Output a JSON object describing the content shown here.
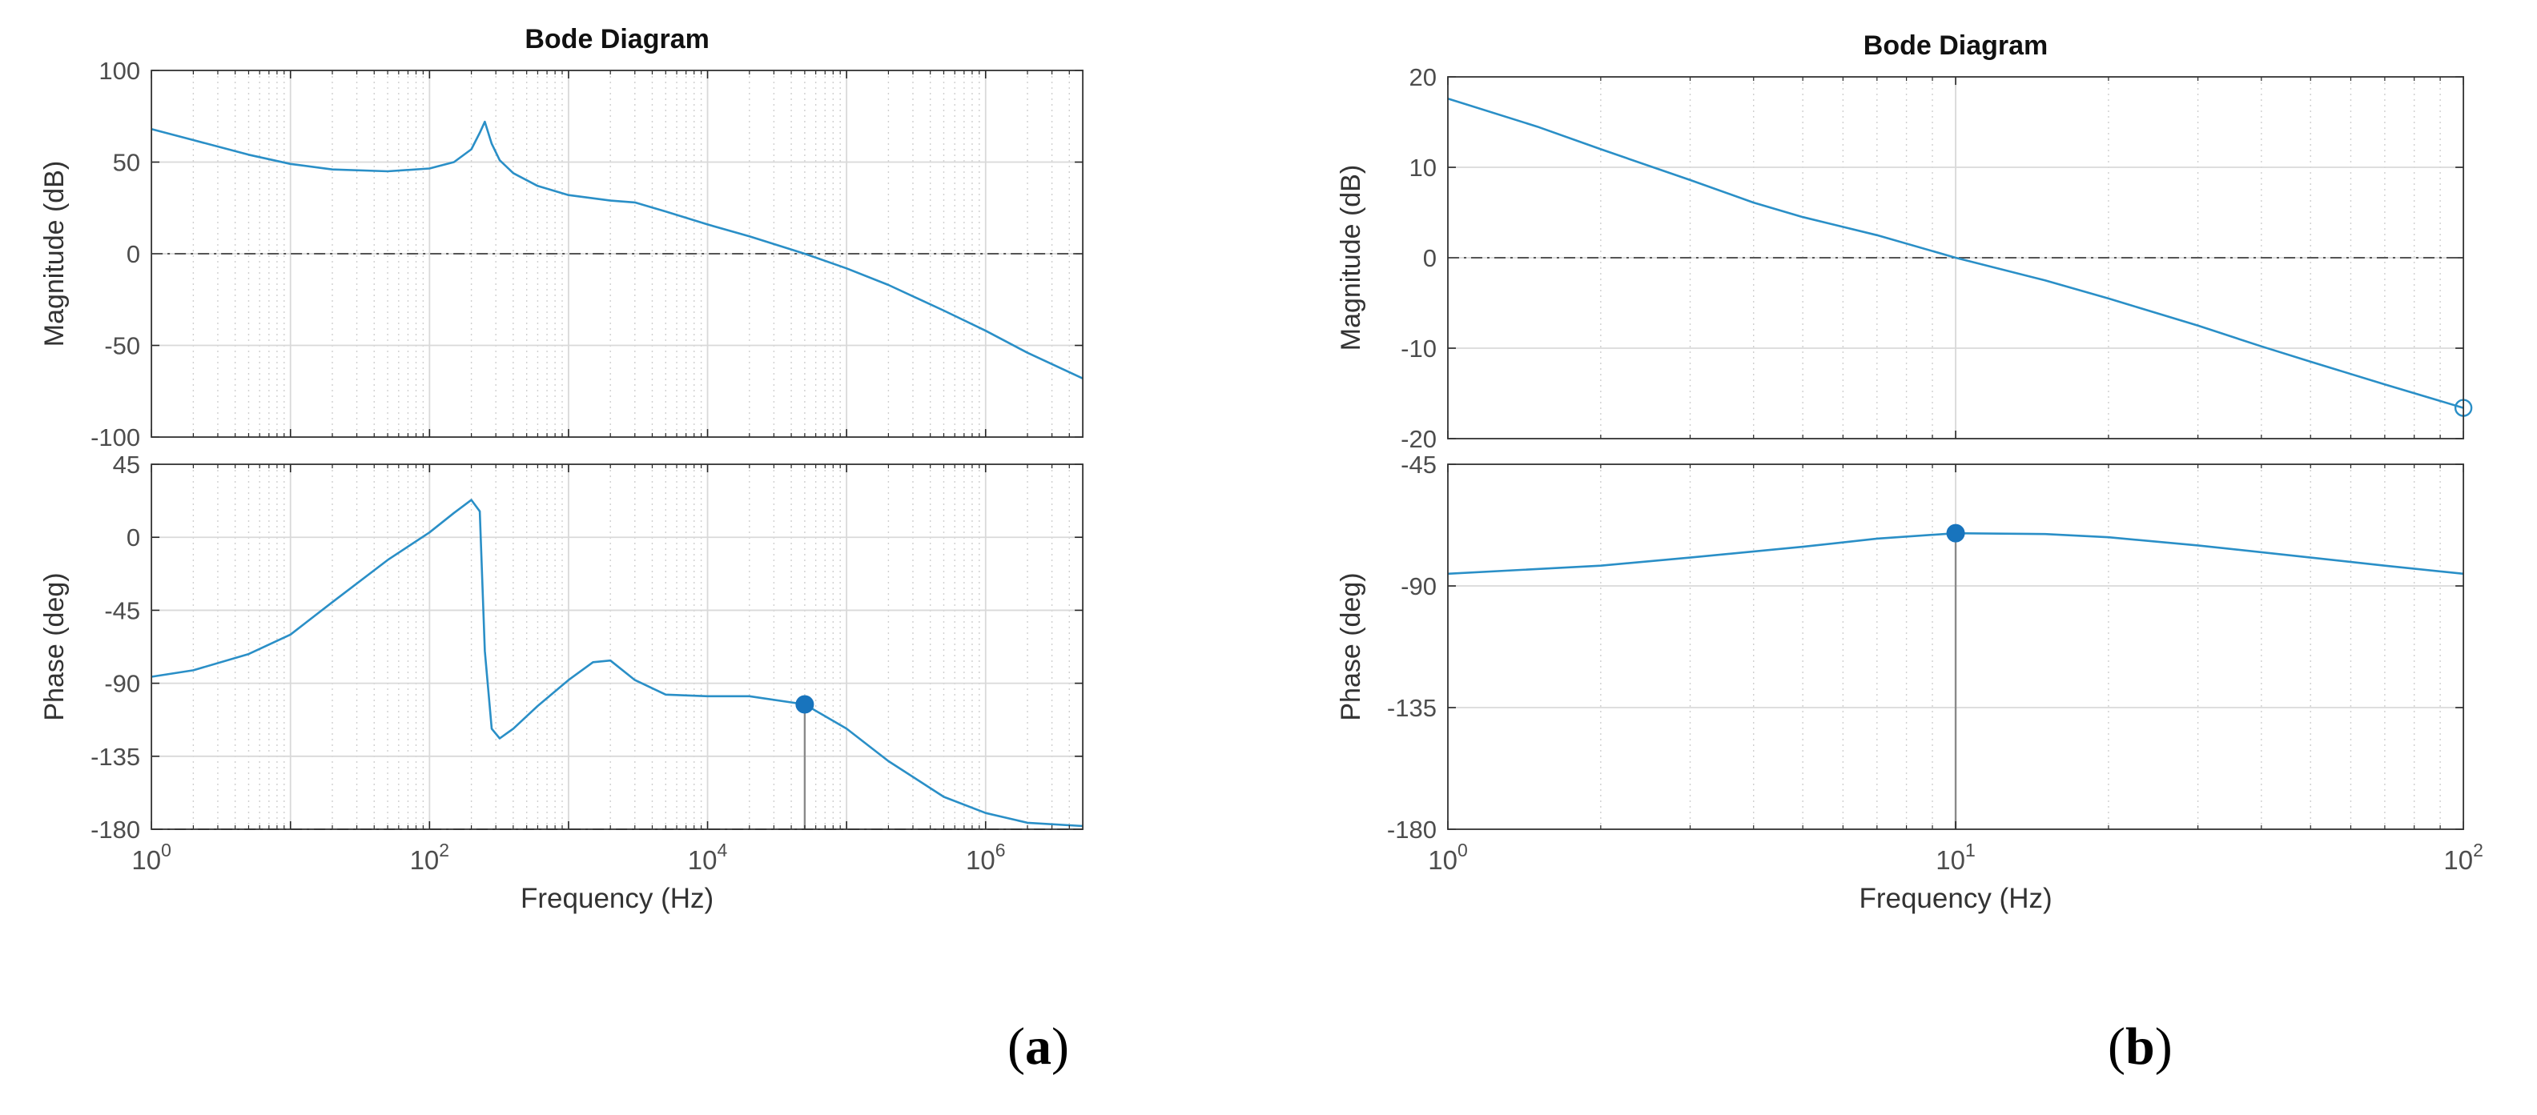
{
  "chart_data": [
    {
      "type": "line",
      "title": "Bode Diagram",
      "panel_label": "a",
      "xlabel": "Frequency  (Hz)",
      "xscale": "log",
      "xlim": [
        1,
        5000000
      ],
      "xticks": [
        {
          "base": "10",
          "exp": "0"
        },
        {
          "base": "10",
          "exp": "2"
        },
        {
          "base": "10",
          "exp": "4"
        },
        {
          "base": "10",
          "exp": "6"
        }
      ],
      "grid": true,
      "line_color": "#2a8fc7",
      "marker_color": "#1874bd",
      "magnitude": {
        "ylabel": "Magnitude (dB)",
        "ylim": [
          -100,
          100
        ],
        "yticks": [
          "100",
          "50",
          "0",
          "-50",
          "-100"
        ],
        "reference_line": 0,
        "x": [
          1,
          2,
          5,
          10,
          20,
          50,
          100,
          150,
          200,
          230,
          250,
          280,
          320,
          400,
          600,
          1000,
          2000,
          3000,
          5000,
          10000,
          20000,
          50000,
          100000,
          200000,
          500000,
          1000000,
          2000000,
          5000000
        ],
        "y": [
          68,
          62,
          54,
          49,
          46,
          45,
          46.5,
          50,
          57,
          66,
          72,
          60,
          51,
          44,
          37,
          32,
          29,
          28,
          23,
          16,
          9.5,
          0,
          -8,
          -17,
          -31,
          -42,
          -54,
          -68
        ]
      },
      "phase": {
        "ylabel": "Phase (deg)",
        "ylim": [
          -180,
          45
        ],
        "yticks": [
          "45",
          "0",
          "-45",
          "-90",
          "-135",
          "-180"
        ],
        "reference_line": -180,
        "x": [
          1,
          2,
          5,
          10,
          20,
          50,
          100,
          150,
          200,
          230,
          250,
          280,
          320,
          400,
          600,
          1000,
          1500,
          2000,
          3000,
          5000,
          10000,
          20000,
          50000,
          100000,
          200000,
          500000,
          1000000,
          2000000,
          5000000
        ],
        "y": [
          -86,
          -82,
          -72,
          -60,
          -40,
          -14,
          3,
          15,
          23,
          16,
          -70,
          -118,
          -124,
          -118,
          -104,
          -88,
          -77,
          -76,
          -88,
          -97,
          -98,
          -98,
          -103,
          -118,
          -138,
          -160,
          -170,
          -176,
          -178
        ],
        "marker": {
          "x": 50000,
          "y": -103,
          "filled": true
        }
      }
    },
    {
      "type": "line",
      "title": "Bode Diagram",
      "panel_label": "b",
      "xlabel": "Frequency  (Hz)",
      "xscale": "log",
      "xlim": [
        1,
        100
      ],
      "xticks": [
        {
          "base": "10",
          "exp": "0"
        },
        {
          "base": "10",
          "exp": "1"
        },
        {
          "base": "10",
          "exp": "2"
        }
      ],
      "grid": true,
      "line_color": "#2a8fc7",
      "marker_color": "#1874bd",
      "magnitude": {
        "ylabel": "Magnitude (dB)",
        "ylim": [
          -20,
          20
        ],
        "yticks": [
          "20",
          "10",
          "0",
          "-10",
          "-20"
        ],
        "reference_line": 0,
        "x": [
          1,
          1.5,
          2,
          3,
          4,
          5,
          7,
          10,
          15,
          20,
          30,
          40,
          50,
          70,
          100
        ],
        "y": [
          17.6,
          14.5,
          12,
          8.6,
          6.1,
          4.5,
          2.5,
          0,
          -2.5,
          -4.5,
          -7.5,
          -9.8,
          -11.5,
          -14,
          -16.6
        ],
        "marker": {
          "x": 100,
          "y": -16.6,
          "filled": false
        }
      },
      "phase": {
        "ylabel": "Phase (deg)",
        "ylim": [
          -180,
          -45
        ],
        "yticks": [
          "-45",
          "-90",
          "-135",
          "-180"
        ],
        "x": [
          1,
          2,
          3,
          5,
          7,
          10,
          15,
          20,
          30,
          50,
          70,
          100
        ],
        "y": [
          -85.5,
          -82.5,
          -79.5,
          -75.5,
          -72.5,
          -70.5,
          -70.8,
          -72,
          -75,
          -79.5,
          -82.5,
          -85.5
        ],
        "marker": {
          "x": 10,
          "y": -70.5,
          "filled": true
        }
      }
    }
  ]
}
